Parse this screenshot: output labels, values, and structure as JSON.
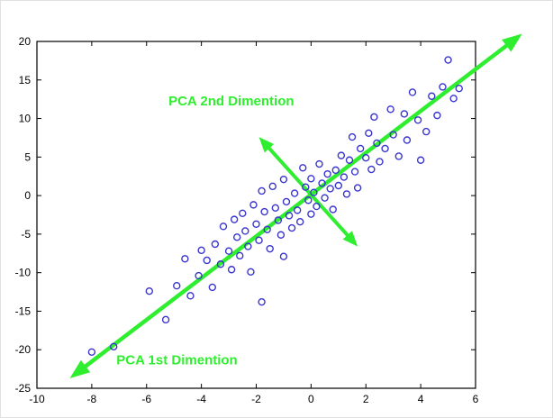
{
  "figure": {
    "background": "#ffffff",
    "axes_color": "#000000"
  },
  "chart_data": {
    "type": "scatter",
    "title": "",
    "xlabel": "",
    "ylabel": "",
    "xlim": [
      -10,
      6
    ],
    "ylim": [
      -25,
      20
    ],
    "x_ticks": [
      -10,
      -8,
      -6,
      -4,
      -2,
      0,
      2,
      4,
      6
    ],
    "y_ticks": [
      -25,
      -20,
      -15,
      -10,
      -5,
      0,
      5,
      10,
      15,
      20
    ],
    "grid": false,
    "legend": null,
    "marker": {
      "shape": "open-circle",
      "color": "#3a35cf",
      "radius_px": 3.5
    },
    "series": [
      {
        "name": "pca-sample-points",
        "points": [
          [
            -8.0,
            -20.3
          ],
          [
            -7.2,
            -19.6
          ],
          [
            -5.9,
            -12.4
          ],
          [
            -5.3,
            -16.1
          ],
          [
            -4.9,
            -11.7
          ],
          [
            -4.6,
            -8.2
          ],
          [
            -4.4,
            -13.0
          ],
          [
            -4.1,
            -10.4
          ],
          [
            -4.0,
            -7.1
          ],
          [
            -3.8,
            -8.4
          ],
          [
            -3.6,
            -11.9
          ],
          [
            -3.5,
            -6.3
          ],
          [
            -3.3,
            -8.9
          ],
          [
            -3.2,
            -4.0
          ],
          [
            -3.0,
            -7.2
          ],
          [
            -2.9,
            -9.6
          ],
          [
            -2.8,
            -3.1
          ],
          [
            -2.7,
            -5.4
          ],
          [
            -2.6,
            -7.8
          ],
          [
            -2.5,
            -2.3
          ],
          [
            -2.4,
            -4.6
          ],
          [
            -2.3,
            -6.6
          ],
          [
            -2.2,
            -9.9
          ],
          [
            -2.1,
            -1.2
          ],
          [
            -2.0,
            -3.7
          ],
          [
            -1.9,
            -5.8
          ],
          [
            -1.8,
            -13.8
          ],
          [
            -1.8,
            0.6
          ],
          [
            -1.7,
            -2.1
          ],
          [
            -1.6,
            -4.4
          ],
          [
            -1.5,
            -6.9
          ],
          [
            -1.4,
            1.2
          ],
          [
            -1.3,
            -1.6
          ],
          [
            -1.2,
            -3.2
          ],
          [
            -1.1,
            -5.1
          ],
          [
            -1.0,
            -7.9
          ],
          [
            -1.0,
            2.1
          ],
          [
            -0.9,
            -0.8
          ],
          [
            -0.8,
            -2.6
          ],
          [
            -0.7,
            -4.2
          ],
          [
            -0.6,
            0.3
          ],
          [
            -0.5,
            -1.9
          ],
          [
            -0.4,
            -3.4
          ],
          [
            -0.3,
            3.6
          ],
          [
            -0.2,
            1.1
          ],
          [
            -0.1,
            -0.6
          ],
          [
            0.0,
            -2.4
          ],
          [
            0.0,
            2.2
          ],
          [
            0.1,
            0.4
          ],
          [
            0.2,
            -1.4
          ],
          [
            0.3,
            4.1
          ],
          [
            0.4,
            1.6
          ],
          [
            0.5,
            -0.3
          ],
          [
            0.6,
            2.8
          ],
          [
            0.7,
            0.9
          ],
          [
            0.8,
            -1.8
          ],
          [
            0.9,
            3.3
          ],
          [
            1.0,
            1.3
          ],
          [
            1.1,
            5.2
          ],
          [
            1.2,
            2.4
          ],
          [
            1.3,
            0.2
          ],
          [
            1.4,
            4.6
          ],
          [
            1.5,
            7.6
          ],
          [
            1.6,
            3.1
          ],
          [
            1.7,
            1.0
          ],
          [
            1.8,
            6.1
          ],
          [
            2.0,
            4.9
          ],
          [
            2.1,
            8.1
          ],
          [
            2.2,
            3.4
          ],
          [
            2.3,
            10.2
          ],
          [
            2.4,
            6.8
          ],
          [
            2.5,
            4.4
          ],
          [
            2.7,
            6.1
          ],
          [
            2.9,
            11.2
          ],
          [
            3.0,
            7.9
          ],
          [
            3.2,
            5.1
          ],
          [
            3.4,
            10.6
          ],
          [
            3.5,
            7.2
          ],
          [
            3.7,
            13.4
          ],
          [
            3.9,
            9.8
          ],
          [
            4.0,
            4.6
          ],
          [
            4.2,
            8.3
          ],
          [
            4.4,
            12.9
          ],
          [
            4.6,
            10.4
          ],
          [
            4.8,
            14.1
          ],
          [
            5.0,
            17.6
          ],
          [
            5.2,
            12.6
          ],
          [
            5.4,
            13.9
          ]
        ]
      }
    ],
    "annotations": [
      {
        "id": "pca1",
        "type": "double-arrow",
        "label": "PCA 1st Dimention",
        "color": "#2fee2f",
        "from": [
          -8.8,
          -23.7
        ],
        "to": [
          7.7,
          21.0
        ],
        "line_width": 4.5,
        "head_len": 22,
        "head_width": 17,
        "label_pos": [
          -7.1,
          -21.9
        ],
        "label_anchor": "start"
      },
      {
        "id": "pca2",
        "type": "double-arrow",
        "label": "PCA 2nd Dimention",
        "color": "#2fee2f",
        "from": [
          1.7,
          -6.6
        ],
        "to": [
          -1.9,
          7.6
        ],
        "line_width": 4,
        "head_len": 17,
        "head_width": 14,
        "label_pos": [
          -5.2,
          11.7
        ],
        "label_anchor": "start"
      }
    ]
  }
}
